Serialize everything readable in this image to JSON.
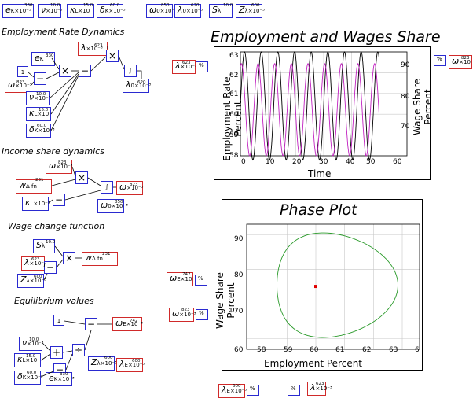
{
  "top_params": [
    {
      "sym": "e",
      "sub": "K",
      "sup": "-3",
      "val": "330"
    },
    {
      "sym": "ν",
      "sub": "",
      "sup": "-3",
      "val": "10.0"
    },
    {
      "sym": "κ",
      "sub": "L",
      "sup": "",
      "val": "15.0"
    },
    {
      "sym": "δ",
      "sub": "K",
      "sup": "-3",
      "val": "60.0"
    },
    {
      "sym": "ω",
      "sub": "0",
      "sup": "-3",
      "val": "850"
    },
    {
      "sym": "λ",
      "sub": "0",
      "sup": "-3",
      "val": "620"
    },
    {
      "sym": "S",
      "sub": "λ",
      "sup": "",
      "val": "10.0"
    },
    {
      "sym": "Z",
      "sub": "λ",
      "sup": "-3",
      "val": "600"
    }
  ],
  "sections": {
    "employment": "Employment Rate Dynamics",
    "income": "Income share dynamics",
    "wage": "Wage change function",
    "equilibrium": "Equilibrium values"
  },
  "values": {
    "eK": "330",
    "nu": "10.0",
    "kL": "15.0",
    "dK": "60.0",
    "omega0": "850",
    "lambda0": "620",
    "lambda_emp": "623",
    "omega_emp": "823",
    "lambda_out": "623",
    "omega_inc": "823",
    "wdelta": "231",
    "Slambda": "10.0",
    "lambda_w": "623",
    "Z_w": "600",
    "one": "1",
    "omegaE": "742",
    "lambdaE": "600",
    "Z_eq": "600"
  },
  "top_chart": {
    "title": "Employment and Wages Share",
    "xlabel": "Time",
    "ylabel_left": "Employment Rate Percent",
    "ylabel_right": "Wage Share Percent",
    "xticks": [
      "0",
      "10",
      "20",
      "30",
      "40",
      "50",
      "60"
    ],
    "yticks_left": [
      "58",
      "59",
      "60",
      "61",
      "62",
      "63"
    ],
    "yticks_right": [
      "70",
      "80",
      "90"
    ],
    "side_lambda": "623",
    "side_omega": "823"
  },
  "phase_chart": {
    "title": "Phase Plot",
    "xlabel": "Employment Percent",
    "ylabel": "Wage Share Percent",
    "xticks": [
      "58",
      "59",
      "60",
      "61",
      "62",
      "63",
      "6"
    ],
    "yticks": [
      "60",
      "70",
      "80",
      "90"
    ],
    "side_omegaE": "742",
    "side_omega": "823",
    "bottom_lambdaE": "600",
    "bottom_lambda": "623"
  },
  "chart_data": [
    {
      "type": "line",
      "title": "Employment and Wages Share",
      "xlabel": "Time",
      "ylabel": "Employment Rate Percent",
      "ylabel_right": "Wage Share Percent",
      "xlim": [
        0,
        60
      ],
      "ylim": [
        58,
        63
      ],
      "ylim_right": [
        60,
        96
      ],
      "series": [
        {
          "axis": "left",
          "color": "#000000",
          "period": 6.0,
          "min": 57.8,
          "max": 63.0,
          "x_end": 50
        },
        {
          "axis": "right",
          "color": "#c020c0",
          "period": 6.0,
          "min": 60,
          "max": 92,
          "x_end": 50
        }
      ]
    },
    {
      "type": "line",
      "title": "Phase Plot",
      "xlabel": "Employment Percent",
      "ylabel": "Wage Share Percent",
      "xlim": [
        57.6,
        63.6
      ],
      "ylim": [
        57,
        93
      ],
      "series": [
        {
          "color": "#2a9a2a",
          "shape": "closed-orbit",
          "x_min": 58.4,
          "x_max": 62.6,
          "y_min": 60.4,
          "y_max": 90.5
        }
      ],
      "equilibrium": {
        "x": 60.0,
        "y": 75.1,
        "color": "#e00000"
      }
    }
  ]
}
